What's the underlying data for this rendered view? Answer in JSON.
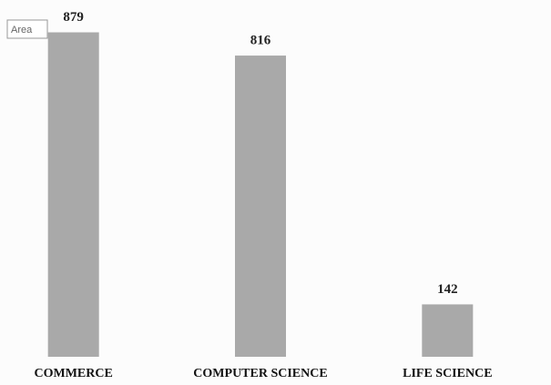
{
  "chart_data": {
    "type": "bar",
    "annotation": "Area",
    "categories": [
      "COMMERCE",
      "COMPUTER SCIENCE",
      "LIFE SCIENCE"
    ],
    "values": [
      879,
      816,
      142
    ],
    "color": "#a9a9a9",
    "ylim": [
      0,
      900
    ]
  }
}
